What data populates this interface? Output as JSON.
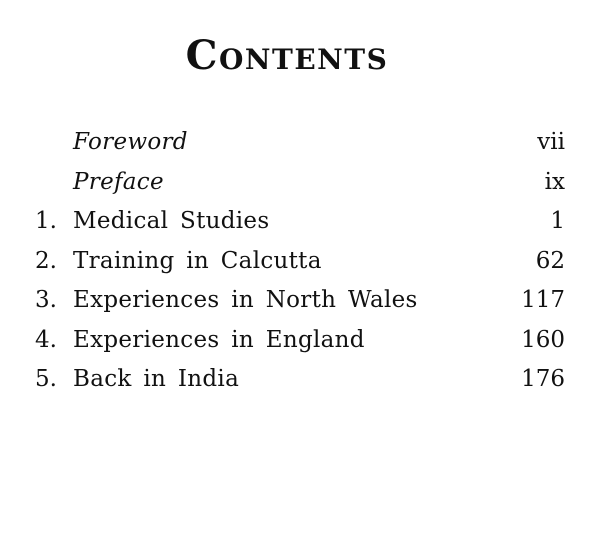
{
  "document": {
    "title": "Contents",
    "toc": {
      "entries": [
        {
          "num": "",
          "label": "Foreword",
          "page": "vii"
        },
        {
          "num": "",
          "label": "Preface",
          "page": "ix"
        },
        {
          "num": "1.",
          "label": "Medical Studies",
          "page": "1"
        },
        {
          "num": "2.",
          "label": "Training in Calcutta",
          "page": "62"
        },
        {
          "num": "3.",
          "label": "Experiences in North Wales",
          "page": "117"
        },
        {
          "num": "4.",
          "label": "Experiences in England",
          "page": "160"
        },
        {
          "num": "5.",
          "label": "Back in India",
          "page": "176"
        }
      ]
    },
    "colors": {
      "ink": "#111111",
      "paper": "#ffffff"
    }
  }
}
